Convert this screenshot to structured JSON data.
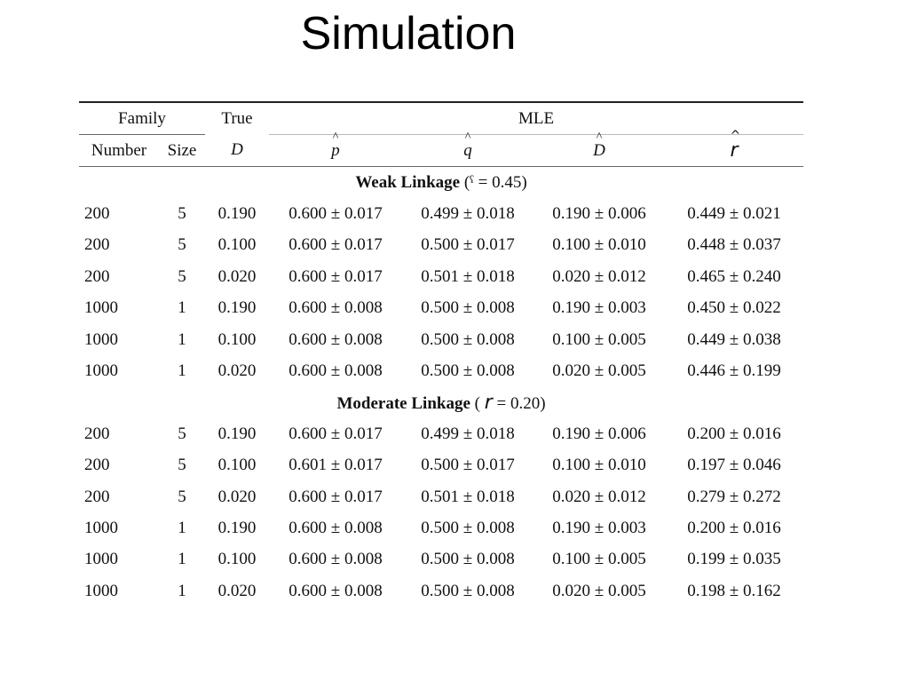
{
  "slide": {
    "title": "Simulation"
  },
  "table": {
    "header": {
      "family": "Family",
      "true": "True",
      "mle": "MLE",
      "number": "Number",
      "size": "Size",
      "d_true": "D",
      "p_hat": "p",
      "q_hat": "q",
      "d_hat": "D",
      "r_hat": "r"
    },
    "sections": [
      {
        "title": "Weak Linkage",
        "param_open": "(",
        "param_symbol": "ˁ",
        "param_value": " = 0.45)",
        "rows": [
          [
            "200",
            "5",
            "0.190",
            "0.600 ± 0.017",
            "0.499 ± 0.018",
            "0.190 ± 0.006",
            "0.449 ± 0.021"
          ],
          [
            "200",
            "5",
            "0.100",
            "0.600 ± 0.017",
            "0.500 ± 0.017",
            "0.100 ± 0.010",
            "0.448 ± 0.037"
          ],
          [
            "200",
            "5",
            "0.020",
            "0.600 ± 0.017",
            "0.501 ± 0.018",
            "0.020 ± 0.012",
            "0.465 ± 0.240"
          ],
          [
            "1000",
            "1",
            "0.190",
            "0.600 ± 0.008",
            "0.500 ± 0.008",
            "0.190 ± 0.003",
            "0.450 ± 0.022"
          ],
          [
            "1000",
            "1",
            "0.100",
            "0.600 ± 0.008",
            "0.500 ± 0.008",
            "0.100 ± 0.005",
            "0.449 ± 0.038"
          ],
          [
            "1000",
            "1",
            "0.020",
            "0.600 ± 0.008",
            "0.500 ± 0.008",
            "0.020 ± 0.005",
            "0.446 ± 0.199"
          ]
        ]
      },
      {
        "title": "Moderate Linkage",
        "param_open": "( ",
        "param_symbol": "r",
        "param_value": " = 0.20)",
        "rows": [
          [
            "200",
            "5",
            "0.190",
            "0.600 ± 0.017",
            "0.499 ± 0.018",
            "0.190 ± 0.006",
            "0.200 ± 0.016"
          ],
          [
            "200",
            "5",
            "0.100",
            "0.601 ± 0.017",
            "0.500 ± 0.017",
            "0.100 ± 0.010",
            "0.197 ± 0.046"
          ],
          [
            "200",
            "5",
            "0.020",
            "0.600 ± 0.017",
            "0.501 ± 0.018",
            "0.020 ± 0.012",
            "0.279 ± 0.272"
          ],
          [
            "1000",
            "1",
            "0.190",
            "0.600 ± 0.008",
            "0.500 ± 0.008",
            "0.190 ± 0.003",
            "0.200 ± 0.016"
          ],
          [
            "1000",
            "1",
            "0.100",
            "0.600 ± 0.008",
            "0.500 ± 0.008",
            "0.100 ± 0.005",
            "0.199 ± 0.035"
          ],
          [
            "1000",
            "1",
            "0.020",
            "0.600 ± 0.008",
            "0.500 ± 0.008",
            "0.020 ± 0.005",
            "0.198 ± 0.162"
          ]
        ]
      }
    ]
  }
}
